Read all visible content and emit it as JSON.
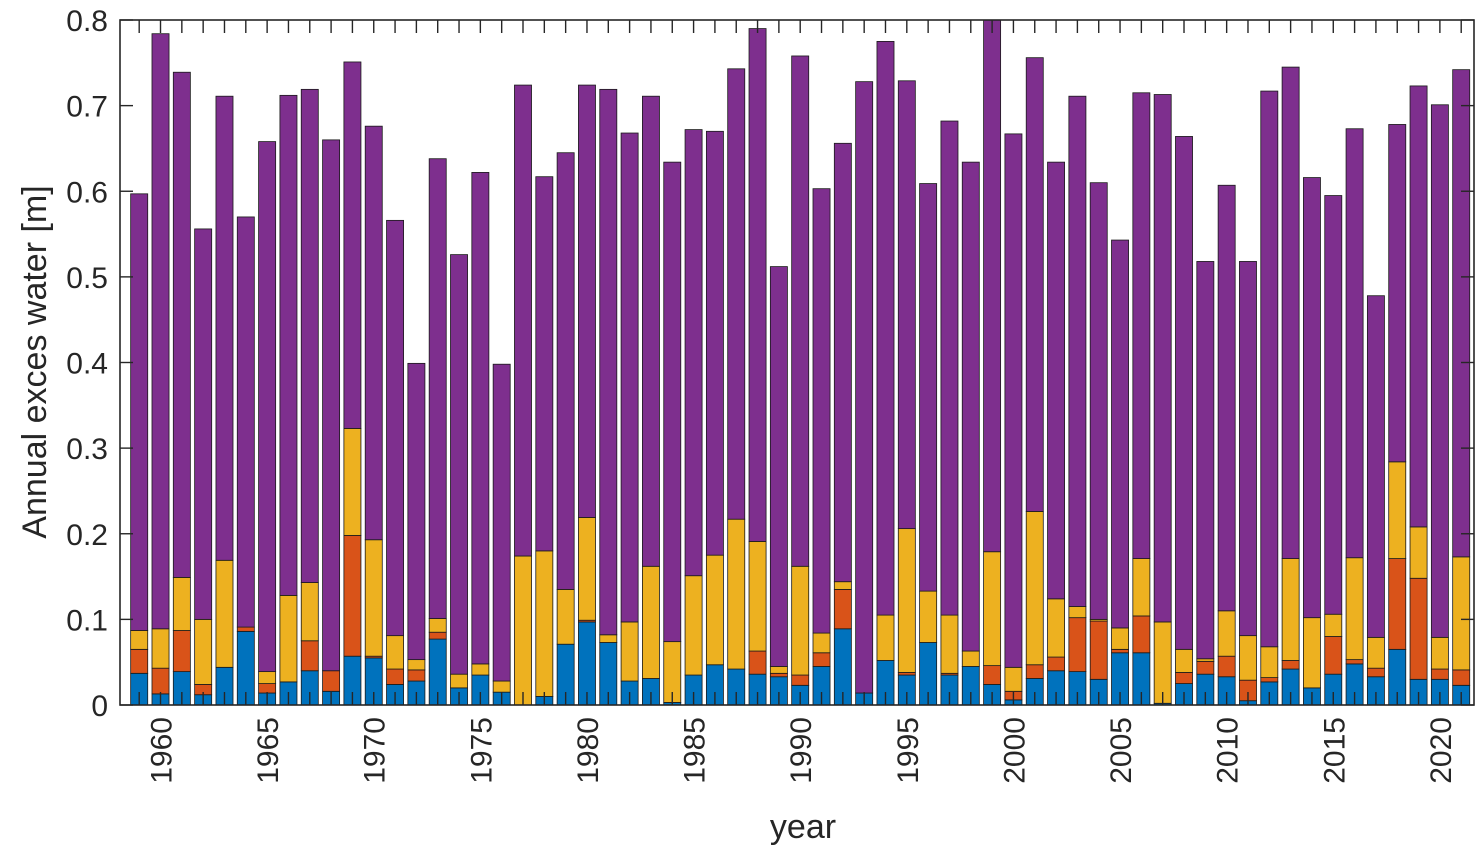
{
  "chart_data": {
    "type": "bar",
    "stacked": true,
    "title": "",
    "xlabel": "year",
    "ylabel": "Annual exces water [m]",
    "ylim": [
      0,
      0.8
    ],
    "yticks": [
      0,
      0.1,
      0.2,
      0.3,
      0.4,
      0.5,
      0.6,
      0.7,
      0.8
    ],
    "ytick_labels": [
      "0",
      "0.1",
      "0.2",
      "0.3",
      "0.4",
      "0.5",
      "0.6",
      "0.7",
      "0.8"
    ],
    "xtick_labels": [
      "1960",
      "1965",
      "1970",
      "1975",
      "1980",
      "1985",
      "1990",
      "1995",
      "2000",
      "2005",
      "2010",
      "2015",
      "2020"
    ],
    "grid": false,
    "categories": [
      1959,
      1960,
      1961,
      1962,
      1963,
      1964,
      1965,
      1966,
      1967,
      1968,
      1969,
      1970,
      1971,
      1972,
      1973,
      1974,
      1975,
      1976,
      1977,
      1978,
      1979,
      1980,
      1981,
      1982,
      1983,
      1984,
      1985,
      1986,
      1987,
      1988,
      1989,
      1990,
      1991,
      1992,
      1993,
      1994,
      1995,
      1996,
      1997,
      1998,
      1999,
      2000,
      2001,
      2002,
      2003,
      2004,
      2005,
      2006,
      2007,
      2008,
      2009,
      2010,
      2011,
      2012,
      2013,
      2014,
      2015,
      2016,
      2017,
      2018,
      2019,
      2020,
      2021
    ],
    "totals": [
      0.597,
      0.784,
      0.739,
      0.556,
      0.711,
      0.57,
      0.658,
      0.712,
      0.719,
      0.66,
      0.751,
      0.676,
      0.566,
      0.399,
      0.638,
      0.526,
      0.622,
      0.398,
      0.724,
      0.617,
      0.645,
      0.724,
      0.719,
      0.668,
      0.711,
      0.634,
      0.672,
      0.67,
      0.743,
      0.79,
      0.512,
      0.758,
      0.603,
      0.656,
      0.728,
      0.775,
      0.729,
      0.609,
      0.682,
      0.634,
      0.8,
      0.667,
      0.756,
      0.634,
      0.711,
      0.61,
      0.543,
      0.715,
      0.713,
      0.664,
      0.518,
      0.607,
      0.518,
      0.717,
      0.745,
      0.616,
      0.595,
      0.673,
      0.478,
      0.678,
      0.723,
      0.701,
      0.742
    ],
    "series": [
      {
        "color": "#0072bd",
        "values": [
          0.037,
          0.013,
          0.039,
          0.012,
          0.044,
          0.086,
          0.014,
          0.027,
          0.04,
          0.016,
          0.057,
          0.055,
          0.024,
          0.028,
          0.077,
          0.02,
          0.035,
          0.015,
          0.0,
          0.01,
          0.071,
          0.097,
          0.073,
          0.028,
          0.031,
          0.003,
          0.035,
          0.047,
          0.042,
          0.036,
          0.033,
          0.023,
          0.045,
          0.089,
          0.014,
          0.052,
          0.035,
          0.073,
          0.035,
          0.045,
          0.024,
          0.006,
          0.031,
          0.04,
          0.039,
          0.03,
          0.061,
          0.061,
          0.002,
          0.025,
          0.036,
          0.033,
          0.005,
          0.027,
          0.042,
          0.02,
          0.036,
          0.048,
          0.033,
          0.065,
          0.03,
          0.03,
          0.023
        ]
      },
      {
        "color": "#d95319",
        "values": [
          0.028,
          0.03,
          0.048,
          0.012,
          0.0,
          0.005,
          0.011,
          0.0,
          0.035,
          0.024,
          0.141,
          0.002,
          0.018,
          0.013,
          0.008,
          0.0,
          0.0,
          0.0,
          0.0,
          0.0,
          0.0,
          0.002,
          0.0,
          0.0,
          0.0,
          0.0,
          0.0,
          0.0,
          0.0,
          0.027,
          0.004,
          0.012,
          0.016,
          0.046,
          0.0,
          0.0,
          0.003,
          0.0,
          0.002,
          0.0,
          0.022,
          0.01,
          0.016,
          0.016,
          0.063,
          0.068,
          0.004,
          0.043,
          0.0,
          0.013,
          0.015,
          0.024,
          0.024,
          0.005,
          0.01,
          0.0,
          0.044,
          0.005,
          0.01,
          0.106,
          0.118,
          0.012,
          0.018
        ]
      },
      {
        "color": "#edb120",
        "values": [
          0.022,
          0.046,
          0.062,
          0.076,
          0.125,
          0.0,
          0.014,
          0.101,
          0.068,
          0.0,
          0.125,
          0.136,
          0.039,
          0.012,
          0.016,
          0.016,
          0.013,
          0.013,
          0.174,
          0.17,
          0.064,
          0.12,
          0.009,
          0.069,
          0.131,
          0.071,
          0.116,
          0.128,
          0.175,
          0.128,
          0.008,
          0.127,
          0.023,
          0.009,
          0.0,
          0.053,
          0.168,
          0.06,
          0.068,
          0.018,
          0.133,
          0.028,
          0.179,
          0.068,
          0.013,
          0.002,
          0.025,
          0.067,
          0.095,
          0.027,
          0.003,
          0.053,
          0.052,
          0.036,
          0.119,
          0.082,
          0.026,
          0.119,
          0.036,
          0.113,
          0.06,
          0.037,
          0.132
        ]
      },
      {
        "color": "#7e2f8e",
        "values": [
          0.51,
          0.695,
          0.59,
          0.456,
          0.542,
          0.479,
          0.619,
          0.584,
          0.576,
          0.62,
          0.428,
          0.483,
          0.485,
          0.346,
          0.537,
          0.49,
          0.574,
          0.37,
          0.55,
          0.437,
          0.51,
          0.505,
          0.637,
          0.571,
          0.549,
          0.56,
          0.521,
          0.495,
          0.526,
          0.599,
          0.467,
          0.596,
          0.519,
          0.512,
          0.714,
          0.67,
          0.523,
          0.476,
          0.577,
          0.571,
          0.621,
          0.623,
          0.53,
          0.51,
          0.596,
          0.51,
          0.453,
          0.544,
          0.616,
          0.599,
          0.464,
          0.497,
          0.437,
          0.649,
          0.574,
          0.514,
          0.489,
          0.501,
          0.399,
          0.394,
          0.515,
          0.622,
          0.569
        ]
      }
    ]
  }
}
